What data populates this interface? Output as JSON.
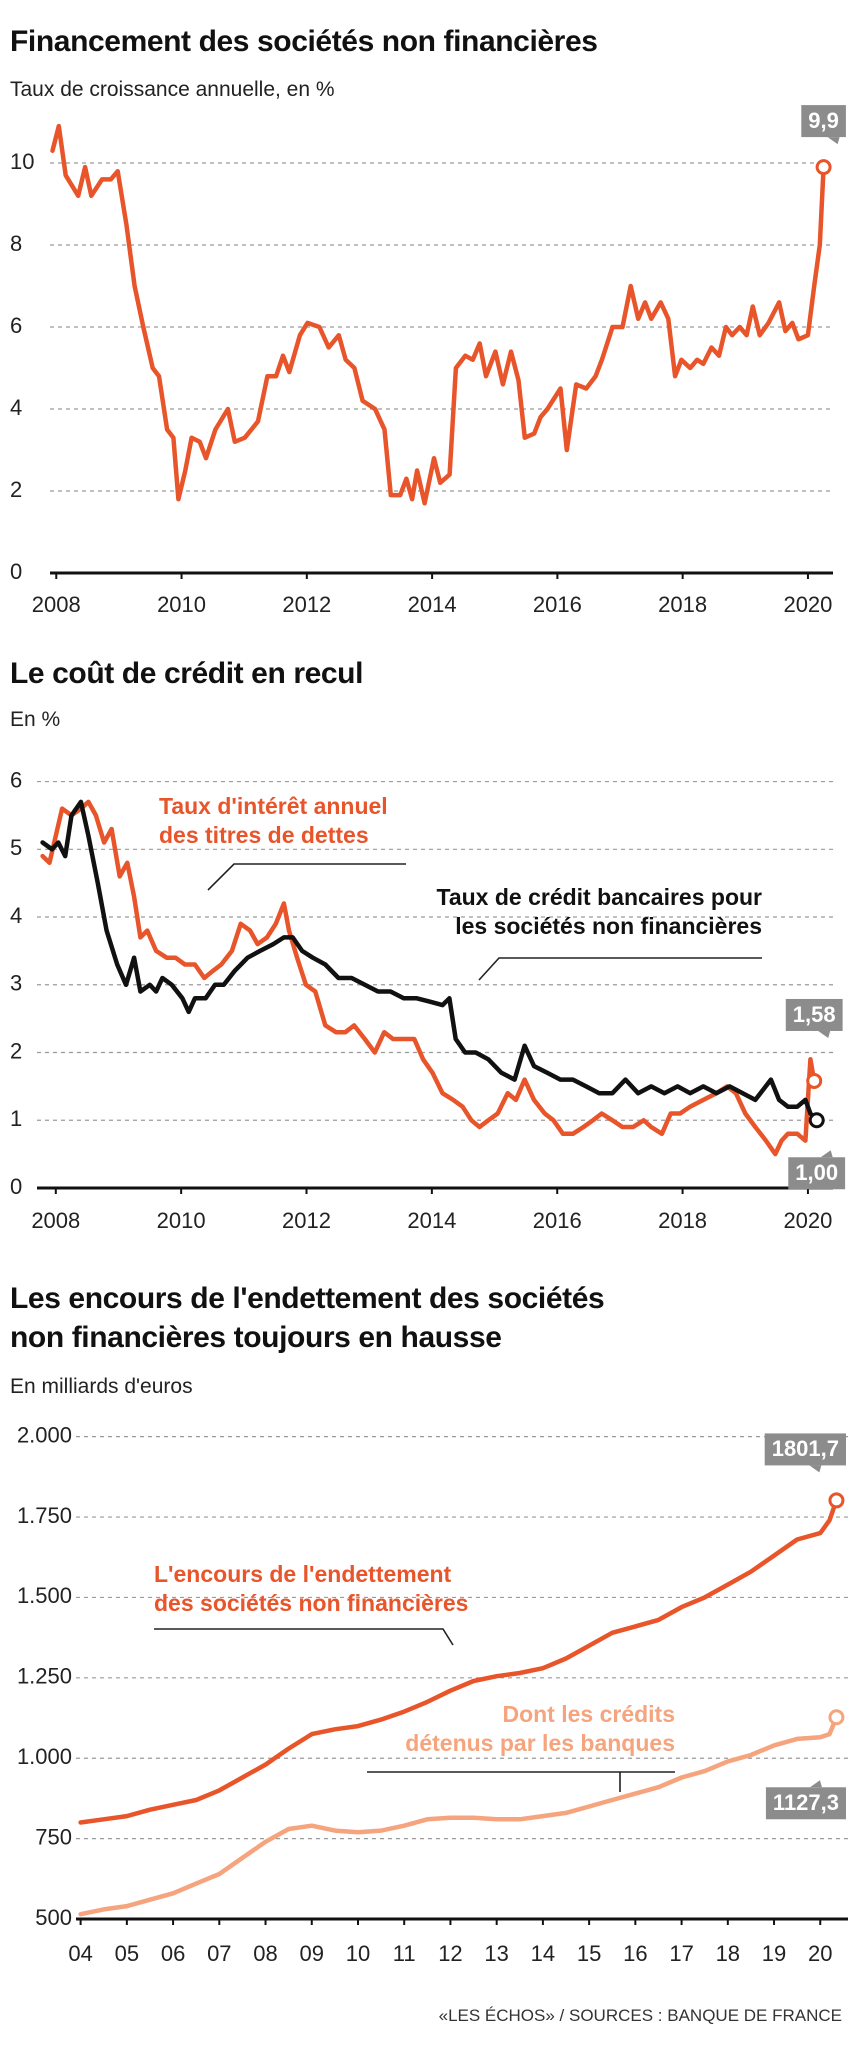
{
  "chart_data": [
    {
      "type": "line",
      "title": "Financement des sociétés non financières",
      "subtitle": "Taux de croissance annuelle, en %",
      "xlim": [
        2007.9,
        2020.4
      ],
      "xticks": [
        2008,
        2010,
        2012,
        2014,
        2016,
        2018,
        2020
      ],
      "ylim": [
        0,
        11
      ],
      "yticks": [
        0,
        2,
        4,
        6,
        8,
        10
      ],
      "grid": true,
      "series": [
        {
          "color": "#e8552a",
          "end_label": "9,9",
          "x": [
            2007.94,
            2008.04,
            2008.15,
            2008.35,
            2008.46,
            2008.56,
            2008.73,
            2008.87,
            2008.98,
            2009.12,
            2009.25,
            2009.39,
            2009.54,
            2009.64,
            2009.77,
            2009.87,
            2009.95,
            2010.06,
            2010.16,
            2010.29,
            2010.39,
            2010.54,
            2010.74,
            2010.85,
            2011.01,
            2011.22,
            2011.37,
            2011.51,
            2011.62,
            2011.72,
            2011.89,
            2012.01,
            2012.2,
            2012.35,
            2012.51,
            2012.62,
            2012.76,
            2012.89,
            2013.09,
            2013.24,
            2013.34,
            2013.49,
            2013.59,
            2013.68,
            2013.76,
            2013.88,
            2014.03,
            2014.13,
            2014.28,
            2014.38,
            2014.53,
            2014.65,
            2014.76,
            2014.86,
            2015.01,
            2015.13,
            2015.26,
            2015.38,
            2015.48,
            2015.63,
            2015.73,
            2015.84,
            2016.05,
            2016.15,
            2016.3,
            2016.46,
            2016.61,
            2016.71,
            2016.88,
            2017.04,
            2017.17,
            2017.29,
            2017.4,
            2017.5,
            2017.65,
            2017.77,
            2017.88,
            2017.98,
            2018.12,
            2018.23,
            2018.33,
            2018.46,
            2018.58,
            2018.69,
            2018.79,
            2018.91,
            2019.02,
            2019.12,
            2019.23,
            2019.37,
            2019.54,
            2019.64,
            2019.75,
            2019.85,
            2020.0,
            2020.1,
            2020.19,
            2020.25
          ],
          "values": [
            10.3,
            10.9,
            9.7,
            9.2,
            9.9,
            9.2,
            9.6,
            9.6,
            9.8,
            8.5,
            7.0,
            6.0,
            5.0,
            4.8,
            3.5,
            3.3,
            1.8,
            2.5,
            3.3,
            3.2,
            2.8,
            3.5,
            4.0,
            3.2,
            3.3,
            3.7,
            4.8,
            4.8,
            5.3,
            4.9,
            5.8,
            6.1,
            6.0,
            5.5,
            5.8,
            5.2,
            5.0,
            4.2,
            4.0,
            3.5,
            1.9,
            1.9,
            2.3,
            1.8,
            2.5,
            1.7,
            2.8,
            2.2,
            2.4,
            5.0,
            5.3,
            5.2,
            5.6,
            4.8,
            5.4,
            4.6,
            5.4,
            4.7,
            3.3,
            3.4,
            3.8,
            4.0,
            4.5,
            3.0,
            4.6,
            4.5,
            4.8,
            5.2,
            6.0,
            6.0,
            7.0,
            6.2,
            6.6,
            6.2,
            6.6,
            6.2,
            4.8,
            5.2,
            5.0,
            5.2,
            5.1,
            5.5,
            5.3,
            6.0,
            5.8,
            6.0,
            5.8,
            6.5,
            5.8,
            6.1,
            6.6,
            5.9,
            6.1,
            5.7,
            5.8,
            7.0,
            8.0,
            9.9
          ]
        }
      ]
    },
    {
      "type": "line",
      "title": "Le coût de crédit en recul",
      "subtitle": "En %",
      "xlim": [
        2007.7,
        2020.4
      ],
      "xticks": [
        2008,
        2010,
        2012,
        2014,
        2016,
        2018,
        2020
      ],
      "ylim": [
        0,
        6.2
      ],
      "yticks": [
        0,
        1,
        2,
        3,
        4,
        5,
        6
      ],
      "grid": true,
      "series": [
        {
          "name": "Taux d'intérêt annuel\ndes titres de dettes",
          "color": "#e8552a",
          "end_label": "1,58",
          "x": [
            2007.79,
            2007.9,
            2008.0,
            2008.1,
            2008.25,
            2008.4,
            2008.52,
            2008.64,
            2008.77,
            2008.89,
            2009.02,
            2009.14,
            2009.25,
            2009.35,
            2009.46,
            2009.6,
            2009.77,
            2009.91,
            2010.06,
            2010.22,
            2010.37,
            2010.5,
            2010.64,
            2010.81,
            2010.95,
            2011.1,
            2011.22,
            2011.37,
            2011.51,
            2011.64,
            2011.72,
            2011.85,
            2011.99,
            2012.14,
            2012.3,
            2012.47,
            2012.62,
            2012.76,
            2012.93,
            2013.09,
            2013.24,
            2013.38,
            2013.55,
            2013.72,
            2013.86,
            2014.01,
            2014.17,
            2014.34,
            2014.49,
            2014.63,
            2014.76,
            2014.9,
            2015.05,
            2015.21,
            2015.34,
            2015.48,
            2015.63,
            2015.8,
            2015.94,
            2016.09,
            2016.25,
            2016.42,
            2016.57,
            2016.71,
            2016.88,
            2017.04,
            2017.21,
            2017.38,
            2017.5,
            2017.67,
            2017.81,
            2017.96,
            2018.12,
            2018.33,
            2018.54,
            2018.71,
            2018.85,
            2019.0,
            2019.16,
            2019.33,
            2019.48,
            2019.58,
            2019.68,
            2019.83,
            2019.96,
            2020.04,
            2020.1
          ],
          "values": [
            4.9,
            4.8,
            5.2,
            5.6,
            5.5,
            5.6,
            5.7,
            5.5,
            5.1,
            5.3,
            4.6,
            4.8,
            4.3,
            3.7,
            3.8,
            3.5,
            3.4,
            3.4,
            3.3,
            3.3,
            3.1,
            3.2,
            3.3,
            3.5,
            3.9,
            3.8,
            3.6,
            3.7,
            3.9,
            4.2,
            3.8,
            3.4,
            3.0,
            2.9,
            2.4,
            2.3,
            2.3,
            2.4,
            2.2,
            2.0,
            2.3,
            2.2,
            2.2,
            2.2,
            1.9,
            1.7,
            1.4,
            1.3,
            1.2,
            1.0,
            0.9,
            1.0,
            1.1,
            1.4,
            1.3,
            1.6,
            1.3,
            1.1,
            1.0,
            0.8,
            0.8,
            0.9,
            1.0,
            1.1,
            1.0,
            0.9,
            0.9,
            1.0,
            0.9,
            0.8,
            1.1,
            1.1,
            1.2,
            1.3,
            1.4,
            1.5,
            1.4,
            1.1,
            0.9,
            0.7,
            0.5,
            0.7,
            0.8,
            0.8,
            0.7,
            1.9,
            1.58
          ]
        },
        {
          "name": "Taux de crédit bancaires pour\nles sociétés non financières",
          "color": "#111111",
          "end_label": "1,00",
          "x": [
            2007.79,
            2007.94,
            2008.04,
            2008.15,
            2008.25,
            2008.4,
            2008.52,
            2008.67,
            2008.81,
            2008.98,
            2009.12,
            2009.25,
            2009.35,
            2009.5,
            2009.6,
            2009.7,
            2009.85,
            2010.02,
            2010.12,
            2010.22,
            2010.39,
            2010.54,
            2010.68,
            2010.85,
            2011.06,
            2011.26,
            2011.47,
            2011.64,
            2011.78,
            2011.93,
            2012.1,
            2012.3,
            2012.51,
            2012.72,
            2012.93,
            2013.14,
            2013.34,
            2013.55,
            2013.76,
            2013.97,
            2014.17,
            2014.28,
            2014.38,
            2014.53,
            2014.7,
            2014.9,
            2015.11,
            2015.32,
            2015.48,
            2015.63,
            2015.84,
            2016.05,
            2016.25,
            2016.46,
            2016.67,
            2016.88,
            2017.09,
            2017.29,
            2017.5,
            2017.71,
            2017.92,
            2018.12,
            2018.33,
            2018.54,
            2018.75,
            2018.96,
            2019.16,
            2019.41,
            2019.54,
            2019.68,
            2019.83,
            2019.96,
            2020.04,
            2020.14
          ],
          "values": [
            5.1,
            5.0,
            5.1,
            4.9,
            5.5,
            5.7,
            5.2,
            4.5,
            3.8,
            3.3,
            3.0,
            3.4,
            2.9,
            3.0,
            2.9,
            3.1,
            3.0,
            2.8,
            2.6,
            2.8,
            2.8,
            3.0,
            3.0,
            3.2,
            3.4,
            3.5,
            3.6,
            3.7,
            3.7,
            3.5,
            3.4,
            3.3,
            3.1,
            3.1,
            3.0,
            2.9,
            2.9,
            2.8,
            2.8,
            2.75,
            2.7,
            2.8,
            2.2,
            2.0,
            2.0,
            1.9,
            1.7,
            1.6,
            2.1,
            1.8,
            1.7,
            1.6,
            1.6,
            1.5,
            1.4,
            1.4,
            1.6,
            1.4,
            1.5,
            1.4,
            1.5,
            1.4,
            1.5,
            1.4,
            1.5,
            1.4,
            1.3,
            1.6,
            1.3,
            1.2,
            1.2,
            1.3,
            1.1,
            1.0
          ]
        }
      ]
    },
    {
      "type": "line",
      "title": "Les encours de l'endettement des sociétés\nnon financières toujours en hausse",
      "subtitle": "En milliards d'euros",
      "xlim": [
        2003.9,
        2020.6
      ],
      "xticks": [
        {
          "value": 2004,
          "label": "04"
        },
        {
          "value": 2005,
          "label": "05"
        },
        {
          "value": 2006,
          "label": "06"
        },
        {
          "value": 2007,
          "label": "07"
        },
        {
          "value": 2008,
          "label": "08"
        },
        {
          "value": 2009,
          "label": "09"
        },
        {
          "value": 2010,
          "label": "10"
        },
        {
          "value": 2011,
          "label": "11"
        },
        {
          "value": 2012,
          "label": "12"
        },
        {
          "value": 2013,
          "label": "13"
        },
        {
          "value": 2014,
          "label": "14"
        },
        {
          "value": 2015,
          "label": "15"
        },
        {
          "value": 2016,
          "label": "16"
        },
        {
          "value": 2017,
          "label": "17"
        },
        {
          "value": 2018,
          "label": "18"
        },
        {
          "value": 2019,
          "label": "19"
        },
        {
          "value": 2020,
          "label": "20"
        }
      ],
      "ylim": [
        500,
        2030
      ],
      "yticks": [
        500,
        750,
        {
          "value": 1000,
          "label": "1.000"
        },
        {
          "value": 1250,
          "label": "1.250"
        },
        {
          "value": 1500,
          "label": "1.500"
        },
        {
          "value": 1750,
          "label": "1.750"
        },
        {
          "value": 2000,
          "label": "2.000"
        }
      ],
      "grid": true,
      "series": [
        {
          "name": "L'encours de l'endettement\ndes sociétés non financières",
          "color": "#e8552a",
          "end_label": "1801,7",
          "x": [
            2004,
            2004.5,
            2005,
            2005.5,
            2006,
            2006.5,
            2007,
            2007.5,
            2008,
            2008.5,
            2009,
            2009.5,
            2010,
            2010.5,
            2011,
            2011.5,
            2012,
            2012.5,
            2013,
            2013.5,
            2014,
            2014.5,
            2015,
            2015.5,
            2016,
            2016.5,
            2017,
            2017.5,
            2018,
            2018.5,
            2019,
            2019.5,
            2020,
            2020.2,
            2020.35
          ],
          "values": [
            800,
            810,
            820,
            840,
            855,
            870,
            900,
            940,
            980,
            1030,
            1075,
            1090,
            1100,
            1120,
            1145,
            1175,
            1210,
            1240,
            1255,
            1265,
            1280,
            1310,
            1350,
            1390,
            1410,
            1430,
            1470,
            1500,
            1540,
            1580,
            1630,
            1680,
            1700,
            1740,
            1801.7
          ]
        },
        {
          "name": "Dont les crédits\ndétenus par les banques",
          "color": "#f5a47d",
          "end_label": "1127,3",
          "x": [
            2004,
            2004.5,
            2005,
            2005.5,
            2006,
            2006.5,
            2007,
            2007.5,
            2008,
            2008.5,
            2009,
            2009.5,
            2010,
            2010.5,
            2011,
            2011.5,
            2012,
            2012.5,
            2013,
            2013.5,
            2014,
            2014.5,
            2015,
            2015.5,
            2016,
            2016.5,
            2017,
            2017.5,
            2018,
            2018.5,
            2019,
            2019.5,
            2020,
            2020.2,
            2020.35
          ],
          "values": [
            515,
            530,
            540,
            560,
            580,
            610,
            640,
            690,
            740,
            780,
            790,
            775,
            770,
            775,
            790,
            810,
            815,
            815,
            810,
            810,
            820,
            830,
            850,
            870,
            890,
            910,
            940,
            960,
            990,
            1010,
            1040,
            1060,
            1065,
            1075,
            1127.3
          ]
        }
      ]
    }
  ],
  "source": "«LES ÉCHOS» / SOURCES : BANQUE DE FRANCE"
}
